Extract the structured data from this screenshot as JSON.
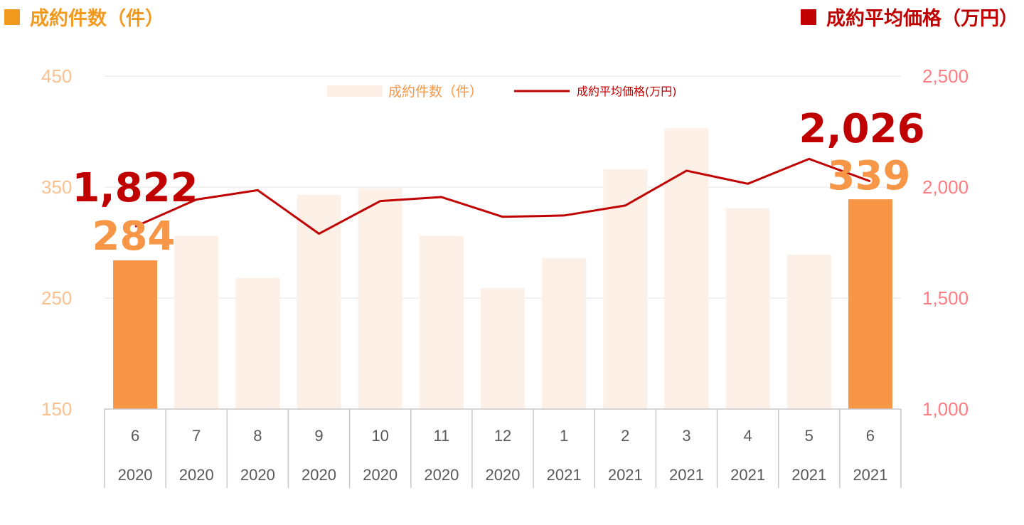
{
  "headers": {
    "left": {
      "label": "成約件数（件）",
      "color": "#f29a1e"
    },
    "right": {
      "label": "成約平均価格（万円）",
      "color": "#c00000"
    }
  },
  "chart_data": {
    "type": "bar+line",
    "categories": [
      {
        "month": "6",
        "year": "2020"
      },
      {
        "month": "7",
        "year": "2020"
      },
      {
        "month": "8",
        "year": "2020"
      },
      {
        "month": "9",
        "year": "2020"
      },
      {
        "month": "10",
        "year": "2020"
      },
      {
        "month": "11",
        "year": "2020"
      },
      {
        "month": "12",
        "year": "2020"
      },
      {
        "month": "1",
        "year": "2021"
      },
      {
        "month": "2",
        "year": "2021"
      },
      {
        "month": "3",
        "year": "2021"
      },
      {
        "month": "4",
        "year": "2021"
      },
      {
        "month": "5",
        "year": "2021"
      },
      {
        "month": "6",
        "year": "2021"
      }
    ],
    "series": [
      {
        "name": "成約件数（件）",
        "type": "bar",
        "axis": "left",
        "color": "#f79646",
        "faded_color": "#fdf0e6",
        "highlight_indices": [
          0,
          12
        ],
        "values": [
          284,
          306,
          268,
          343,
          349,
          306,
          259,
          286,
          366,
          403,
          331,
          289,
          339
        ]
      },
      {
        "name": "成約平均価格(万円)",
        "type": "line",
        "axis": "right",
        "color": "#c00000",
        "values": [
          1822,
          1944,
          1986,
          1790,
          1937,
          1955,
          1866,
          1872,
          1917,
          2074,
          2015,
          2127,
          2026
        ]
      }
    ],
    "y_left": {
      "min": 150,
      "max": 450,
      "ticks": [
        "150",
        "250",
        "350",
        "450"
      ],
      "color": "#fac090"
    },
    "y_right": {
      "min": 1000,
      "max": 2500,
      "ticks": [
        "1,000",
        "1,500",
        "2,000",
        "2,500"
      ],
      "color": "#ff7c80"
    },
    "annotations": {
      "first_price": "1,822",
      "first_count": "284",
      "last_price": "2,026",
      "last_count": "339"
    },
    "legend_position": "top-center",
    "grid": true
  }
}
